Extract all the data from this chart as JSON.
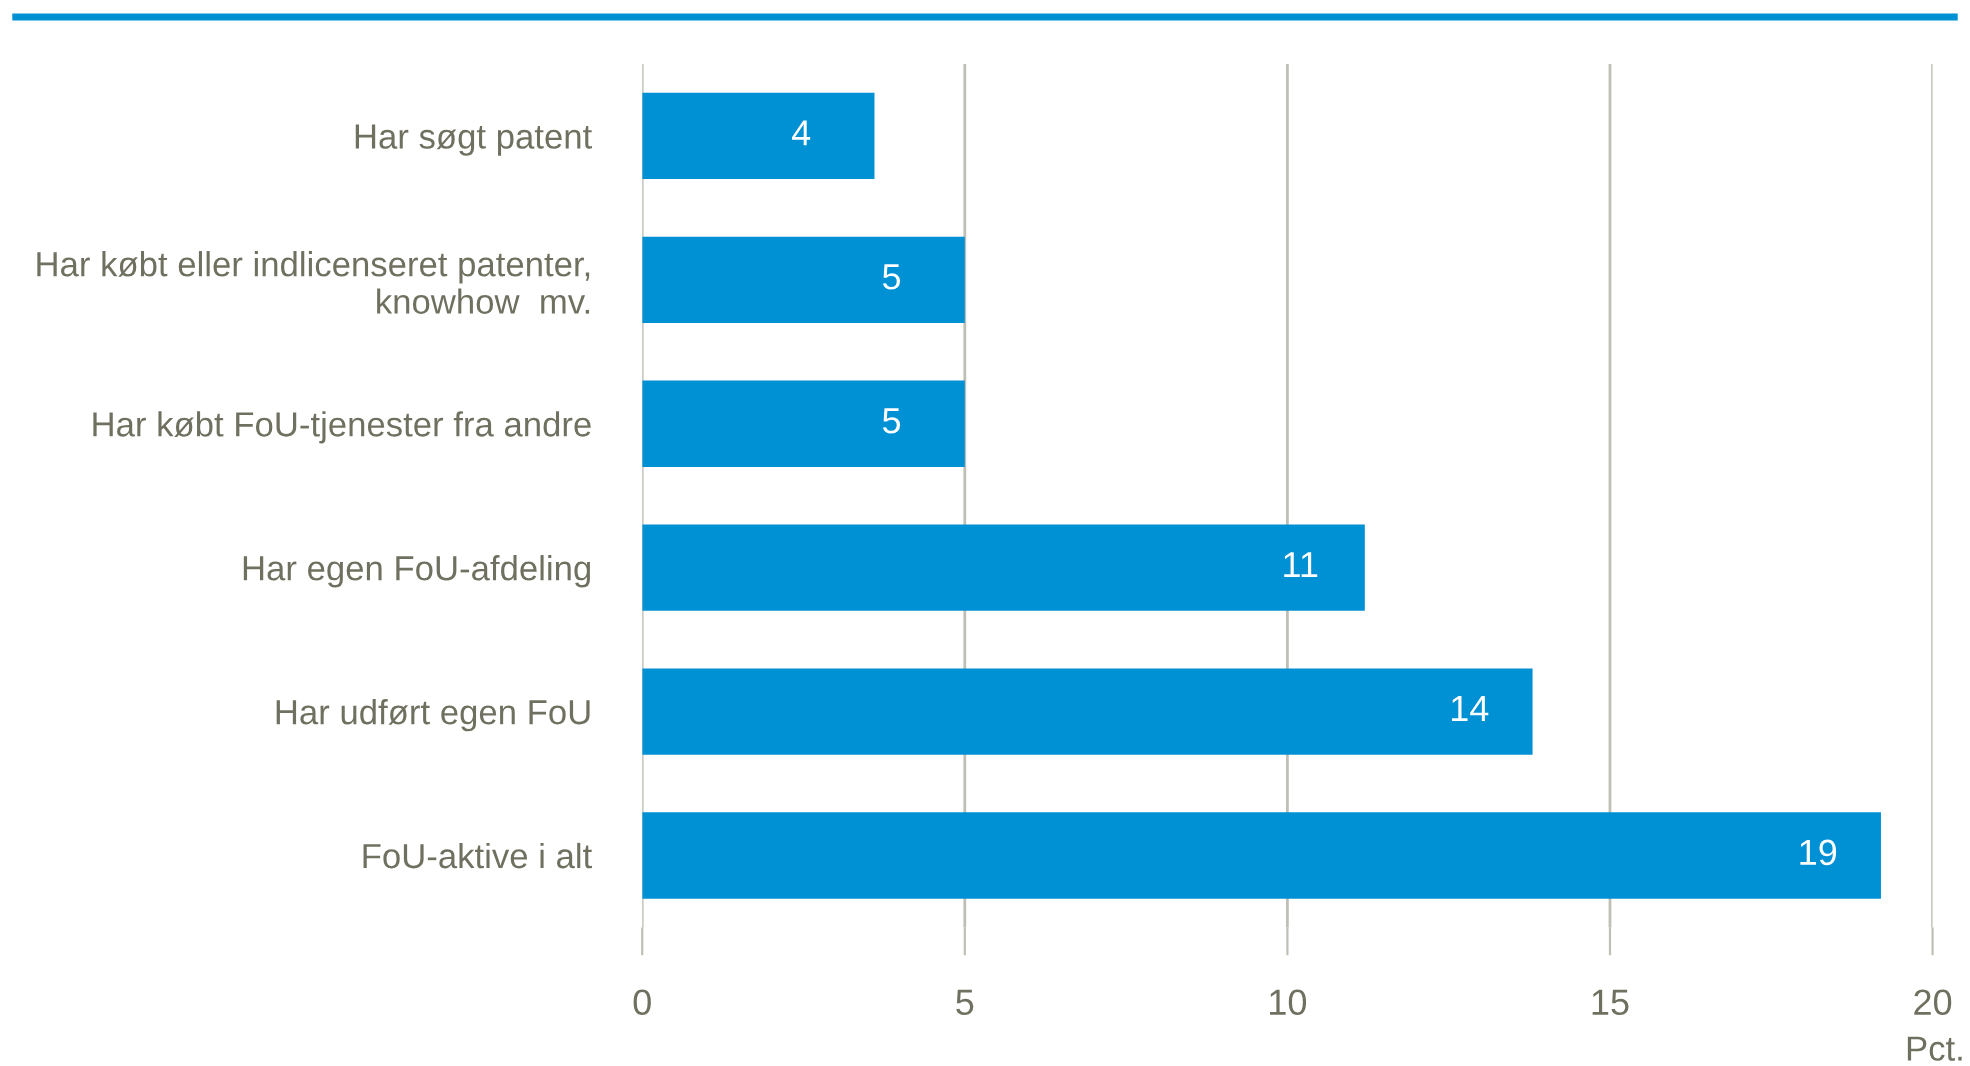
{
  "chart_data": {
    "type": "bar",
    "orientation": "horizontal",
    "xlabel": "Pct.",
    "categories": [
      "Har søgt patent",
      "Har købt eller indlicenseret patenter,\nknowhow  mv.",
      "Har købt FoU-tjenester fra andre",
      "Har egen FoU-afdeling",
      "Har udført egen FoU",
      "FoU-aktive i alt"
    ],
    "values": [
      3.6,
      5.0,
      5.0,
      11.2,
      13.8,
      19.2
    ],
    "value_labels": [
      "4",
      "5",
      "5",
      "11",
      "14",
      "19"
    ],
    "color": "#0090d4",
    "xlim": [
      0,
      20
    ],
    "xticks": [
      0,
      5,
      10,
      15,
      20
    ],
    "grid": "x",
    "legend": false
  }
}
